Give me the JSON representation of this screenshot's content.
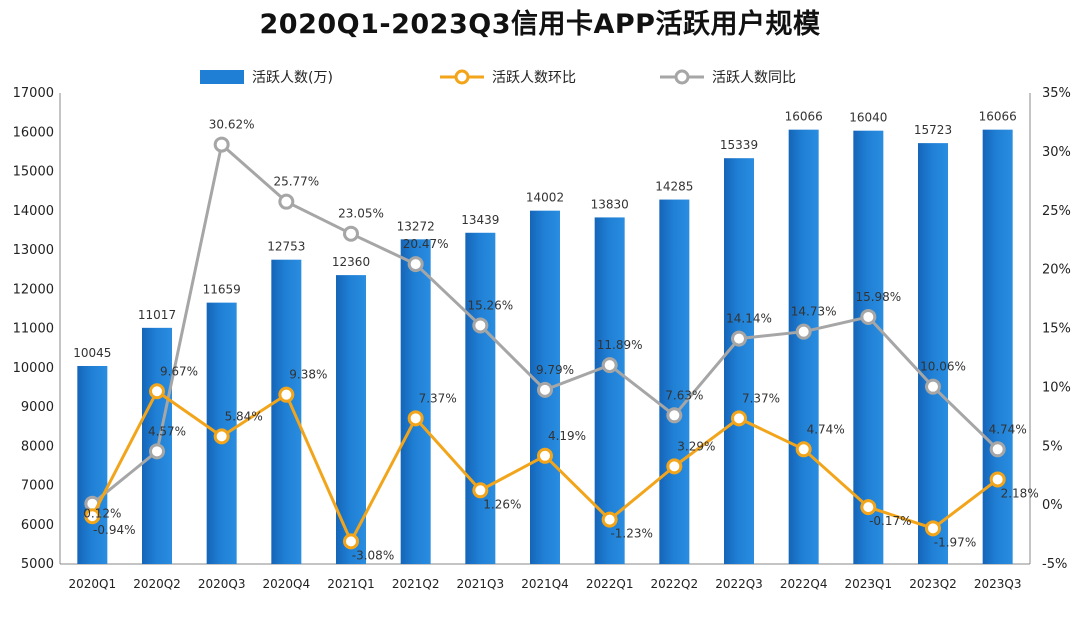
{
  "chart_data": {
    "type": "bar",
    "title": "2020Q1-2023Q3信用卡APP活跃用户规模",
    "categories": [
      "2020Q1",
      "2020Q2",
      "2020Q3",
      "2020Q4",
      "2021Q1",
      "2021Q2",
      "2021Q3",
      "2021Q4",
      "2022Q1",
      "2022Q2",
      "2022Q3",
      "2022Q4",
      "2023Q1",
      "2023Q2",
      "2023Q3"
    ],
    "category_labels": [
      "2020Q1",
      "2020Q2",
      "2020Q3",
      "2020Q4",
      "2021Q1",
      "2021Q2",
      "2021Q3",
      "2021Q4",
      "2022Q1",
      "2022Q2",
      "2022Q3",
      "2022Q4",
      "2023Q1",
      "2023Q2",
      "2023Q3"
    ],
    "legend_position": "top",
    "grid": false,
    "y_left": {
      "range": [
        5000,
        17000
      ],
      "ticks": [
        "5000",
        "6000",
        "7000",
        "8000",
        "9000",
        "10000",
        "11000",
        "12000",
        "13000",
        "14000",
        "15000",
        "16000",
        "17000"
      ]
    },
    "y_right": {
      "range": [
        -5,
        35
      ],
      "ticks": [
        "-5%",
        "0%",
        "5%",
        "10%",
        "15%",
        "20%",
        "25%",
        "30%",
        "35%"
      ]
    },
    "series": [
      {
        "name": "活跃人数(万)",
        "type": "bar",
        "axis": "left",
        "color": "#1f7fd4",
        "values": [
          10045,
          11017,
          11659,
          12753,
          12360,
          13272,
          13439,
          14002,
          13830,
          14285,
          15339,
          16066,
          16040,
          15723,
          16066
        ],
        "labels": [
          "10045",
          "11017",
          "11659",
          "12753",
          "12360",
          "13272",
          "13439",
          "14002",
          "13830",
          "14285",
          "15339",
          "16066",
          "16040",
          "15723",
          "16066"
        ]
      },
      {
        "name": "活跃人数环比",
        "type": "line",
        "axis": "right",
        "color": "#f2a51a",
        "values": [
          -0.94,
          9.67,
          5.84,
          9.38,
          -3.08,
          7.37,
          1.26,
          4.19,
          -1.23,
          3.29,
          7.37,
          4.74,
          -0.17,
          -1.97,
          2.18
        ],
        "labels": [
          "-0.94%",
          "9.67%",
          "5.84%",
          "9.38%",
          "-3.08%",
          "7.37%",
          "1.26%",
          "4.19%",
          "-1.23%",
          "3.29%",
          "7.37%",
          "4.74%",
          "-0.17%",
          "-1.97%",
          "2.18%"
        ]
      },
      {
        "name": "活跃人数同比",
        "type": "line",
        "axis": "right",
        "color": "#a6a6a6",
        "values": [
          0.12,
          4.57,
          30.62,
          25.77,
          23.05,
          20.47,
          15.26,
          9.79,
          11.89,
          7.63,
          14.14,
          14.73,
          15.98,
          10.06,
          4.74
        ],
        "labels": [
          "0.12%",
          "4.57%",
          "30.62%",
          "25.77%",
          "23.05%",
          "20.47%",
          "15.26%",
          "9.79%",
          "11.89%",
          "7.63%",
          "14.14%",
          "14.73%",
          "15.98%",
          "10.06%",
          "4.74%"
        ]
      }
    ]
  }
}
